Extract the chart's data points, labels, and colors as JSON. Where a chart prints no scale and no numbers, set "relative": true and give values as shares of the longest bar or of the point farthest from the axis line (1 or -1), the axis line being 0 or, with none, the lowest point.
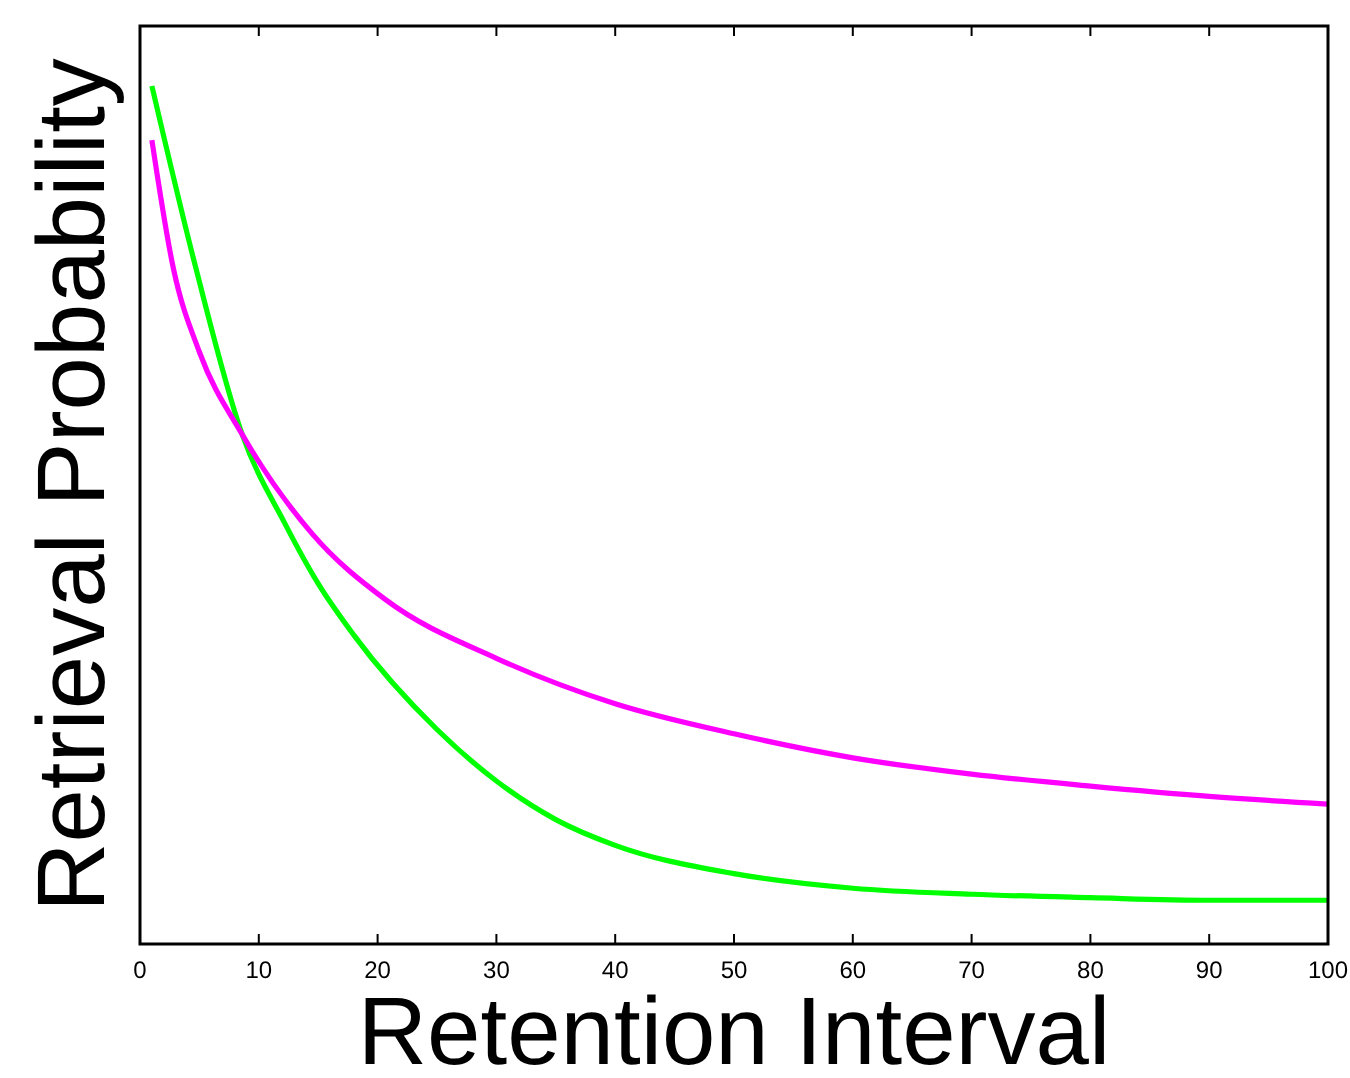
{
  "chart_data": {
    "type": "line",
    "relative": true,
    "xlabel": "Retention Interval",
    "ylabel": "Retrieval Probability",
    "xlim": [
      0,
      100
    ],
    "xticks": [
      0,
      10,
      20,
      30,
      40,
      50,
      60,
      70,
      80,
      90,
      100
    ],
    "grid": false,
    "marker": "none",
    "line_style": "solid",
    "series": [
      {
        "color": "#00ff00",
        "x": [
          1,
          4.7,
          8.6,
          12.2,
          15,
          18,
          25,
          30,
          35,
          40,
          50,
          60,
          70,
          80,
          90,
          100
        ],
        "values": [
          1,
          0.788,
          0.594,
          0.49,
          0.42,
          0.36,
          0.25,
          0.19,
          0.145,
          0.115,
          0.082,
          0.065,
          0.058,
          0.054,
          0.051,
          0.051
        ]
      },
      {
        "color": "#ff00ff",
        "x": [
          1,
          2.8,
          5,
          8.6,
          14.5,
          20.7,
          30,
          40,
          50,
          60,
          70,
          80,
          90,
          100
        ],
        "values": [
          0.937,
          0.788,
          0.69,
          0.594,
          0.478,
          0.401,
          0.333,
          0.28,
          0.245,
          0.217,
          0.198,
          0.184,
          0.172,
          0.163
        ]
      }
    ]
  }
}
